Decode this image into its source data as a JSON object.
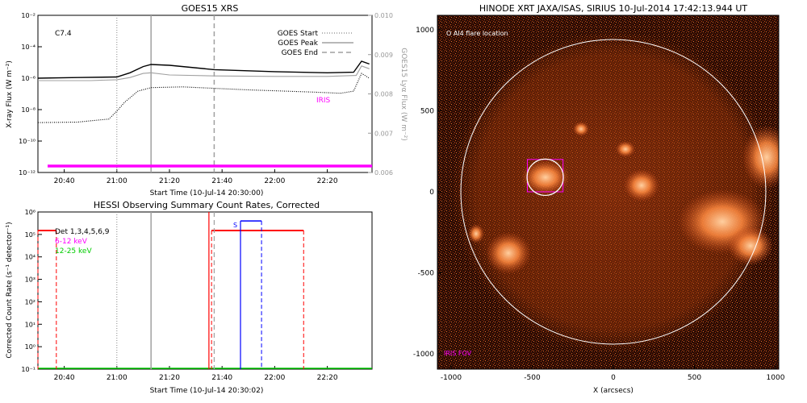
{
  "colors": {
    "magenta": "#ff00ff",
    "red": "#ff0000",
    "green": "#00cc00",
    "blue": "#0000ff",
    "gray": "#a0a0a0",
    "sun_dark": "#2a0c04",
    "sun_mid": "#b33a10",
    "sun_bright": "#ff9a55"
  },
  "chart_data": [
    {
      "type": "line",
      "title": "GOES15 XRS",
      "xlabel": "Start Time (10-Jul-14 20:30:00)",
      "ylabel": "X-ray Flux (W m⁻²)",
      "y2label": "GOES15 Lyα Flux (W m⁻²)",
      "x_ticks": [
        "20:40",
        "21:00",
        "21:20",
        "21:40",
        "22:00",
        "22:20"
      ],
      "y_ticks": [
        "10⁻²",
        "10⁻⁴",
        "10⁻⁶",
        "10⁻⁸",
        "10⁻¹⁰",
        "10⁻¹²"
      ],
      "y2_ticks": [
        "0.010",
        "0.009",
        "0.008",
        "0.007",
        "0.006"
      ],
      "xlim": [
        "20:30",
        "22:37"
      ],
      "ylim": [
        1e-12,
        0.01
      ],
      "yscale": "log",
      "y2lim": [
        0.006,
        0.01
      ],
      "flare_class": "C7.4",
      "legend": [
        {
          "label": "GOES Start",
          "style": "dotted"
        },
        {
          "label": "GOES Peak",
          "style": "solid"
        },
        {
          "label": "GOES End",
          "style": "dashed"
        }
      ],
      "markers": {
        "start": "21:00",
        "peak": "21:13",
        "end": "21:37"
      },
      "iris_label": "IRIS",
      "series": [
        {
          "name": "",
          "color": "#000000",
          "x": [
            "20:30",
            "20:45",
            "21:00",
            "21:05",
            "21:10",
            "21:13",
            "21:20",
            "21:37",
            "22:00",
            "22:20",
            "22:30",
            "22:33",
            "22:36"
          ],
          "y": [
            1e-06,
            1.1e-06,
            1.2e-06,
            2.2e-06,
            5.5e-06,
            7.4e-06,
            6.6e-06,
            3.5e-06,
            2.6e-06,
            2.2e-06,
            2.4e-06,
            1.2e-05,
            8e-06
          ]
        },
        {
          "name": "",
          "color": "#a0a0a0",
          "x": [
            "20:30",
            "20:50",
            "21:00",
            "21:05",
            "21:10",
            "21:13",
            "21:20",
            "21:37",
            "22:00",
            "22:20",
            "22:31",
            "22:33",
            "22:36"
          ],
          "y": [
            7e-07,
            7e-07,
            8e-07,
            1.1e-06,
            2e-06,
            2.2e-06,
            1.6e-06,
            1.4e-06,
            1.3e-06,
            1.3e-06,
            1.5e-06,
            6e-06,
            4e-06
          ]
        },
        {
          "name": "",
          "color": "#000000",
          "style": "dotted",
          "x": [
            "20:30",
            "20:45",
            "20:57",
            "21:00",
            "21:03",
            "21:08",
            "21:13",
            "21:25",
            "21:50",
            "22:15",
            "22:25",
            "22:30",
            "22:33",
            "22:36"
          ],
          "y": [
            1.5e-09,
            1.6e-09,
            2.5e-09,
            8e-09,
            3e-08,
            1.5e-07,
            2.5e-07,
            2.8e-07,
            1.8e-07,
            1.3e-07,
            1.1e-07,
            1.5e-07,
            2e-06,
            1e-06
          ]
        }
      ]
    },
    {
      "type": "line",
      "title": "HESSI Observing Summary Count Rates, Corrected",
      "xlabel": "Start Time (10-Jul-14 20:30:02)",
      "ylabel": "Corrected Count Rate (s⁻¹ detector⁻¹)",
      "x_ticks": [
        "20:40",
        "21:00",
        "21:20",
        "21:40",
        "22:00",
        "22:20"
      ],
      "y_ticks": [
        "10⁶",
        "10⁵",
        "10⁴",
        "10³",
        "10²",
        "10¹",
        "10⁰",
        "10⁻¹"
      ],
      "xlim": [
        "20:30",
        "22:37"
      ],
      "ylim": [
        0.1,
        1000000.0
      ],
      "yscale": "log",
      "legend": [
        {
          "label": "Det 1,3,4,5,6,9",
          "color": "#000000"
        },
        {
          "label": "6-12 keV",
          "color": "#ff00ff"
        },
        {
          "label": "12-25 keV",
          "color": "#00cc00"
        }
      ],
      "saa_label": "S",
      "night_intervals": [
        [
          "20:30",
          "20:37"
        ],
        [
          "21:36",
          "22:11"
        ]
      ],
      "saa_interval": [
        "21:47",
        "21:55"
      ],
      "markers": {
        "start": "21:00",
        "peak": "21:13",
        "end": "21:37"
      }
    },
    {
      "type": "heatmap",
      "title": "HINODE XRT JAXA/ISAS, SIRIUS 10-Jul-2014 17:42:13.944 UT",
      "xlabel": "X (arcsecs)",
      "ylabel": "",
      "x_ticks": [
        "-1000",
        "-500",
        "0",
        "500",
        "1000"
      ],
      "y_ticks": [
        "1000",
        "500",
        "0",
        "-500",
        "-1000"
      ],
      "xlim": [
        -1000,
        1000
      ],
      "ylim": [
        -1000,
        1000
      ],
      "flare_label": "O AI4 flare location",
      "fov_label": "IRIS FOV",
      "flare_center": [
        -420,
        90
      ],
      "flare_radius": 70,
      "iris_fov": [
        [
          -530,
          0
        ],
        [
          -310,
          200
        ]
      ],
      "limb_radius": 940
    }
  ]
}
